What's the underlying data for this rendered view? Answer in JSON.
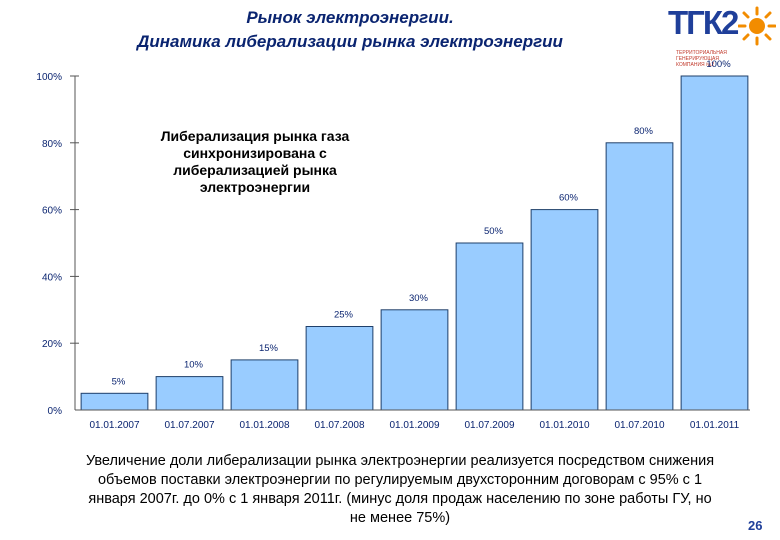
{
  "title_line1": "Рынок электроэнергии.",
  "title_line2": "Динамика либерализации рынка электроэнергии",
  "logo": {
    "text": "ТГК2",
    "subtitle": "ТЕРРИТОРИАЛЬНАЯ ГЕНЕРИРУЮЩАЯ КОМПАНИЯ №2",
    "icon": "sun-icon"
  },
  "annotation": "Либерализация рынка газа синхронизирована с либерализацией рынка электроэнергии",
  "footnote": "Увеличение доли либерализации рынка электроэнергии реализуется посредством снижения объемов поставки электроэнергии по регулируемым двухсторонним договорам с 95% с 1 января 2007г. до 0% с 1 января 2011г. (минус доля продаж населению по зоне работы ГУ, но не менее 75%)",
  "page_number": "26",
  "chart_data": {
    "type": "bar",
    "categories": [
      "01.01.2007",
      "01.07.2007",
      "01.01.2008",
      "01.07.2008",
      "01.01.2009",
      "01.07.2009",
      "01.01.2010",
      "01.07.2010",
      "01.01.2011"
    ],
    "values": [
      5,
      10,
      15,
      25,
      30,
      50,
      60,
      80,
      100
    ],
    "data_labels": [
      "5%",
      "10%",
      "15%",
      "25%",
      "30%",
      "50%",
      "60%",
      "80%",
      "100%"
    ],
    "y_ticks": [
      "0%",
      "20%",
      "40%",
      "60%",
      "80%",
      "100%"
    ],
    "ylim": [
      0,
      100
    ],
    "bar_color": "#99ccff",
    "bar_stroke": "#1f3f6a",
    "grid": false
  }
}
